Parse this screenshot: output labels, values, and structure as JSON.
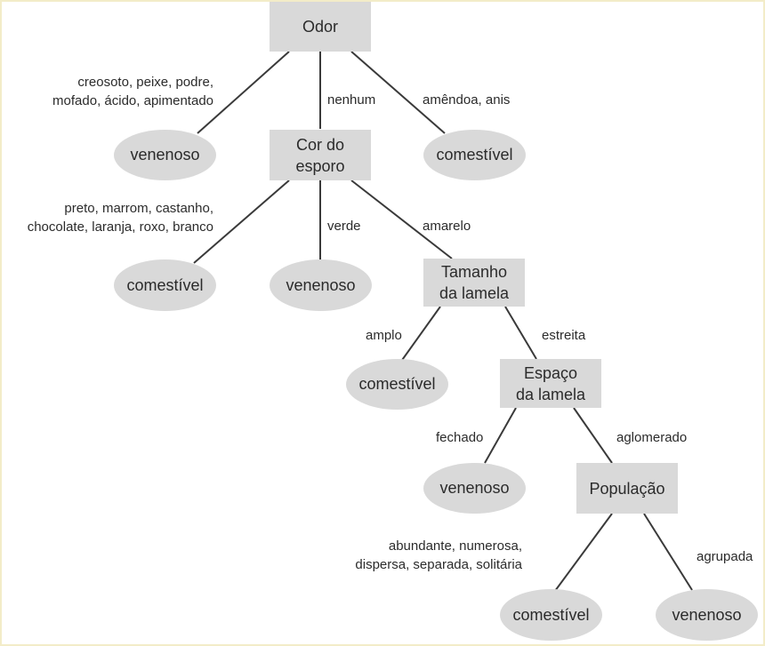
{
  "diagram": {
    "nodes": {
      "odor": "Odor",
      "cor_esporo": "Cor do\nesporo",
      "tamanho_lamela": "Tamanho\nda lamela",
      "espaco_lamela": "Espaço\nda lamela",
      "populacao": "População"
    },
    "leaves": {
      "odor_venenoso": "venenoso",
      "odor_comestivel": "comestível",
      "cor_comestivel": "comestível",
      "cor_venenoso": "venenoso",
      "tamanho_comestivel": "comestível",
      "espaco_venenoso": "venenoso",
      "populacao_comestivel": "comestível",
      "populacao_venenoso": "venenoso"
    },
    "edges": {
      "odor_left": "creosoto, peixe, podre,\nmofado, ácido, apimentado",
      "odor_mid": "nenhum",
      "odor_right": "amêndoa, anis",
      "cor_left": "preto, marrom, castanho,\nchocolate, laranja, roxo, branco",
      "cor_mid": "verde",
      "cor_right": "amarelo",
      "tamanho_left": "amplo",
      "tamanho_right": "estreita",
      "espaco_left": "fechado",
      "espaco_right": "aglomerado",
      "populacao_left": "abundante, numerosa,\ndispersa, separada, solitária",
      "populacao_right": "agrupada"
    },
    "colors": {
      "node_fill": "#d9d9d9",
      "line": "#3a3a3a",
      "text": "#2b2b2b",
      "border_tint": "#f3ecc8"
    }
  }
}
